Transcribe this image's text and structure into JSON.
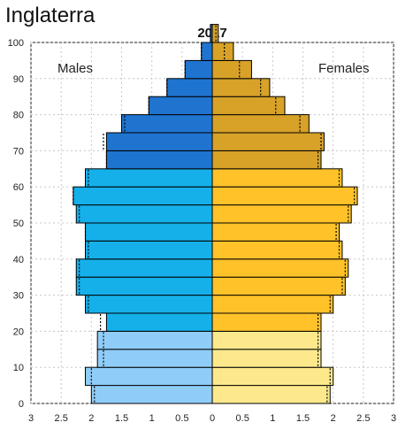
{
  "page_title": "Inglaterra",
  "chart_data": {
    "type": "bar",
    "orientation": "horizontal",
    "subtype": "population-pyramid",
    "title": "2017",
    "left_label": "Males",
    "right_label": "Females",
    "x_ticks": [
      "3",
      "2.5",
      "2",
      "1.5",
      "1",
      "0.5",
      "0",
      "0.5",
      "1",
      "1.5",
      "2",
      "2.5",
      "3"
    ],
    "y_ticks": [
      "0",
      "10",
      "20",
      "30",
      "40",
      "50",
      "60",
      "70",
      "80",
      "90",
      "100"
    ],
    "xlim": [
      -3,
      3
    ],
    "ylim": [
      0,
      100
    ],
    "grid": true,
    "age_groups": [
      "0-4",
      "5-9",
      "10-14",
      "15-19",
      "20-24",
      "25-29",
      "30-34",
      "35-39",
      "40-44",
      "45-49",
      "50-54",
      "55-59",
      "60-64",
      "65-69",
      "70-74",
      "75-79",
      "80-84",
      "85-89",
      "90-94",
      "95-99",
      "100+"
    ],
    "series": [
      {
        "name": "Males",
        "values": [
          2.0,
          2.1,
          1.9,
          1.9,
          1.75,
          2.1,
          2.25,
          2.25,
          2.1,
          2.1,
          2.25,
          2.3,
          2.1,
          1.75,
          1.75,
          1.5,
          1.05,
          0.75,
          0.45,
          0.18,
          0.03
        ],
        "prior_values": [
          1.95,
          2.0,
          1.8,
          1.8,
          1.85,
          2.05,
          2.2,
          2.2,
          2.05,
          2.1,
          2.2,
          2.3,
          2.05,
          1.75,
          1.8,
          1.45,
          1.05,
          0.75,
          0.45,
          0.18,
          0.03
        ]
      },
      {
        "name": "Females",
        "values": [
          1.95,
          2.0,
          1.8,
          1.8,
          1.8,
          2.0,
          2.2,
          2.25,
          2.15,
          2.1,
          2.3,
          2.4,
          2.15,
          1.8,
          1.85,
          1.6,
          1.2,
          0.95,
          0.65,
          0.35,
          0.1
        ],
        "prior_values": [
          1.9,
          1.95,
          1.75,
          1.75,
          1.75,
          1.95,
          2.15,
          2.2,
          2.1,
          2.05,
          2.25,
          2.35,
          2.1,
          1.75,
          1.8,
          1.45,
          1.05,
          0.8,
          0.45,
          0.2,
          0.06
        ]
      }
    ],
    "colors": {
      "male_young": "#8fcdf8",
      "male_work": "#15b0ea",
      "male_old": "#1f74d0",
      "female_young": "#fde98c",
      "female_work": "#ffc229",
      "female_old": "#d8a228",
      "bar_stroke": "#000000",
      "grid": "#c8c8c8"
    }
  }
}
